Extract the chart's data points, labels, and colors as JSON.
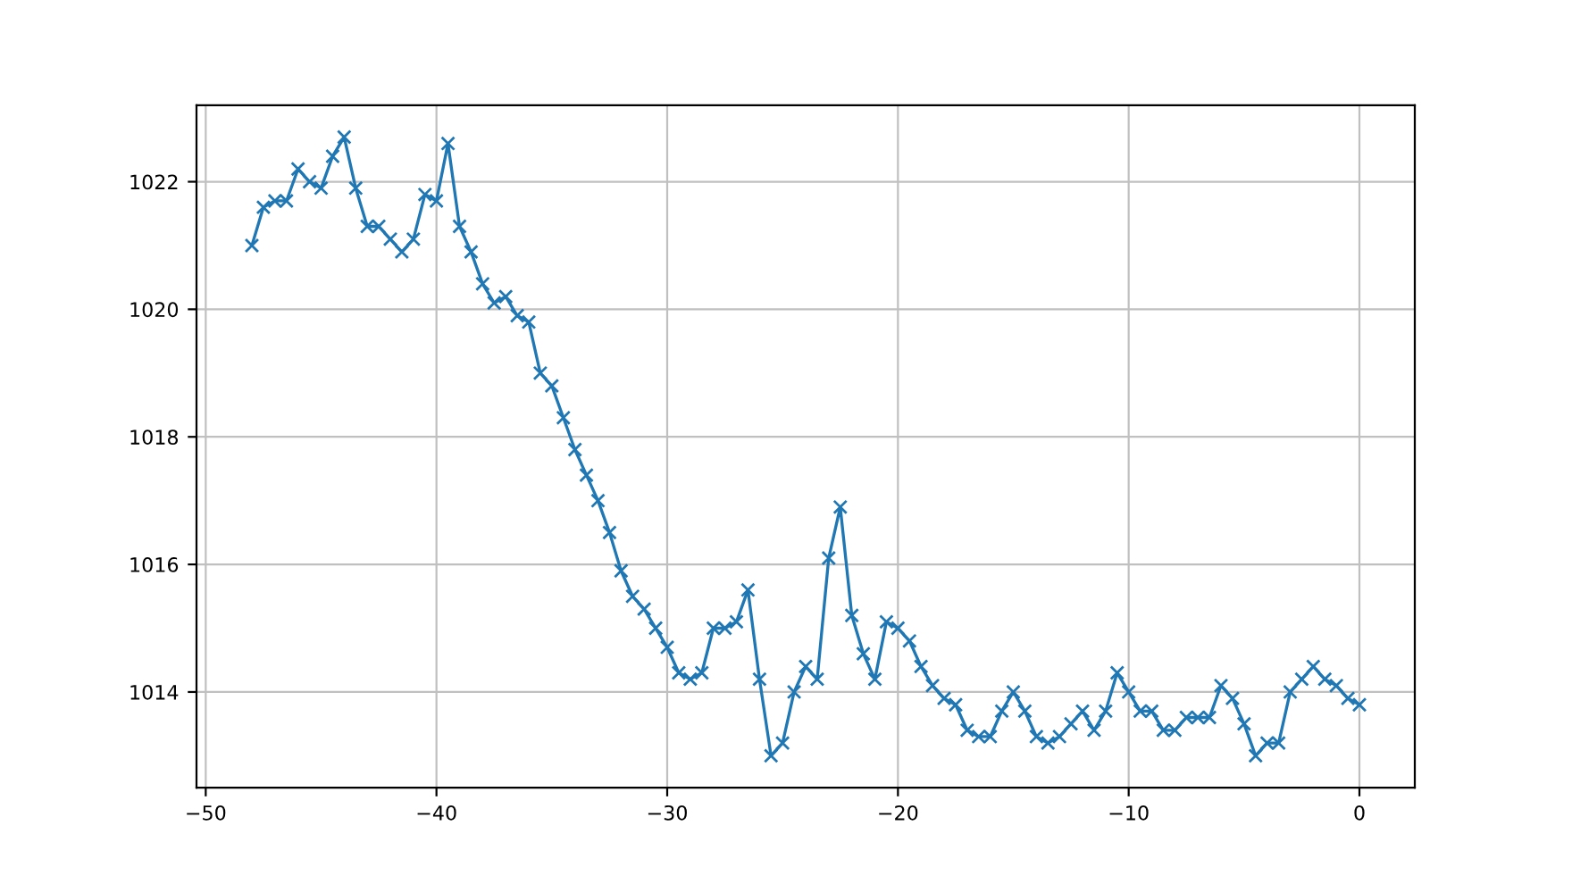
{
  "chart_data": {
    "type": "line",
    "x": [
      -48,
      -47.5,
      -47,
      -46.5,
      -46,
      -45.5,
      -45,
      -44.5,
      -44,
      -43.5,
      -43,
      -42.5,
      -42,
      -41.5,
      -41,
      -40.5,
      -40,
      -39.5,
      -39,
      -38.5,
      -38,
      -37.5,
      -37,
      -36.5,
      -36,
      -35.5,
      -35,
      -34.5,
      -34,
      -33.5,
      -33,
      -32.5,
      -32,
      -31.5,
      -31,
      -30.5,
      -30,
      -29.5,
      -29,
      -28.5,
      -28,
      -27.5,
      -27,
      -26.5,
      -26,
      -25.5,
      -25,
      -24.5,
      -24,
      -23.5,
      -23,
      -22.5,
      -22,
      -21.5,
      -21,
      -20.5,
      -20,
      -19.5,
      -19,
      -18.5,
      -18,
      -17.5,
      -17,
      -16.5,
      -16,
      -15.5,
      -15,
      -14.5,
      -14,
      -13.5,
      -13,
      -12.5,
      -12,
      -11.5,
      -11,
      -10.5,
      -10,
      -9.5,
      -9,
      -8.5,
      -8,
      -7.5,
      -7,
      -6.5,
      -6,
      -5.5,
      -5,
      -4.5,
      -4,
      -3.5,
      -3,
      -2.5,
      -2,
      -1.5,
      -1,
      -0.5,
      0
    ],
    "series": [
      {
        "color": "#1f77b4",
        "values": [
          1021.0,
          1021.6,
          1021.7,
          1021.7,
          1022.2,
          1022.0,
          1021.9,
          1022.4,
          1022.7,
          1021.9,
          1021.3,
          1021.3,
          1021.1,
          1020.9,
          1021.1,
          1021.8,
          1021.7,
          1022.6,
          1021.3,
          1020.9,
          1020.4,
          1020.1,
          1020.2,
          1019.9,
          1019.8,
          1019.0,
          1018.8,
          1018.3,
          1017.8,
          1017.4,
          1017.0,
          1016.5,
          1015.9,
          1015.5,
          1015.3,
          1015.0,
          1014.7,
          1014.3,
          1014.2,
          1014.3,
          1015.0,
          1015.0,
          1015.1,
          1015.6,
          1014.2,
          1013.0,
          1013.2,
          1014.0,
          1014.4,
          1014.2,
          1016.1,
          1016.9,
          1015.2,
          1014.6,
          1014.2,
          1015.1,
          1015.0,
          1014.8,
          1014.4,
          1014.1,
          1013.9,
          1013.8,
          1013.4,
          1013.3,
          1013.3,
          1013.7,
          1014.0,
          1013.7,
          1013.3,
          1013.2,
          1013.3,
          1013.5,
          1013.7,
          1013.4,
          1013.7,
          1014.3,
          1014.0,
          1013.7,
          1013.7,
          1013.4,
          1013.4,
          1013.6,
          1013.6,
          1013.6,
          1014.1,
          1013.9,
          1013.5,
          1013.0,
          1013.2,
          1013.2,
          1014.0,
          1014.2,
          1014.4,
          1014.2,
          1014.1,
          1013.9,
          1013.8
        ]
      }
    ],
    "xlim": [
      -50.4,
      2.4
    ],
    "ylim": [
      1012.5,
      1023.2
    ],
    "xticks": [
      {
        "value": -50,
        "label": "−50"
      },
      {
        "value": -40,
        "label": "−40"
      },
      {
        "value": -30,
        "label": "−30"
      },
      {
        "value": -20,
        "label": "−20"
      },
      {
        "value": -10,
        "label": "−10"
      },
      0
    ],
    "yticks": [
      1014,
      1016,
      1018,
      1020,
      1022
    ],
    "grid": true,
    "marker": "cross",
    "line_style": "solid"
  }
}
